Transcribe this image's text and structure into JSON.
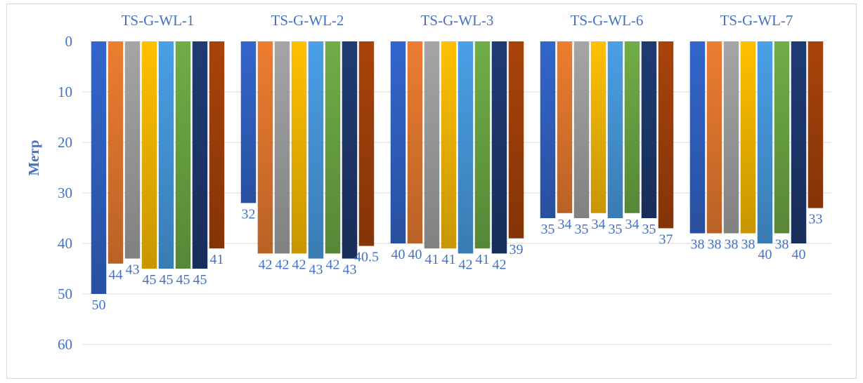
{
  "chart_data": {
    "type": "bar",
    "orientation": "vertical-inverted",
    "ylabel": "Метр",
    "ylim": [
      0,
      60
    ],
    "yticks": [
      0,
      10,
      20,
      30,
      40,
      50,
      60
    ],
    "grid": true,
    "categories": [
      "TS-G-WL-1",
      "TS-G-WL-2",
      "TS-G-WL-3",
      "TS-G-WL-6",
      "TS-G-WL-7"
    ],
    "series": [
      {
        "color": "#3366cc",
        "values": [
          50,
          32,
          40,
          35,
          38
        ]
      },
      {
        "color": "#ed7d31",
        "values": [
          44,
          42,
          40,
          34,
          38
        ]
      },
      {
        "color": "#a5a5a5",
        "values": [
          43,
          42,
          41,
          35,
          38
        ]
      },
      {
        "color": "#ffc000",
        "values": [
          45,
          42,
          41,
          34,
          38
        ]
      },
      {
        "color": "#4a9fe6",
        "values": [
          45,
          43,
          42,
          35,
          40
        ]
      },
      {
        "color": "#70ad47",
        "values": [
          45,
          42,
          41,
          34,
          38
        ]
      },
      {
        "color": "#1f3b73",
        "values": [
          45,
          43,
          42,
          35,
          40
        ]
      },
      {
        "color": "#a9430a",
        "values": [
          41,
          40.5,
          39,
          37,
          33
        ]
      }
    ]
  }
}
